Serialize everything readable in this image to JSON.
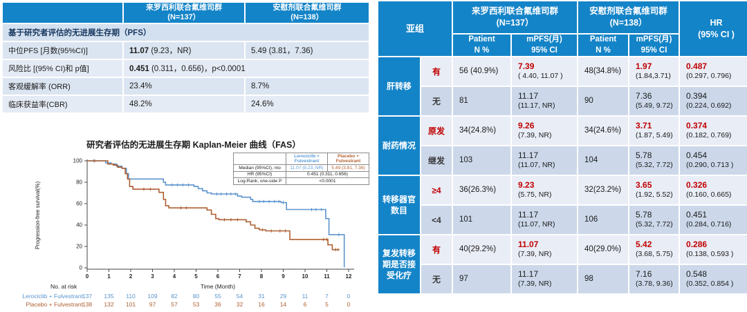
{
  "colors": {
    "header_blue": "#1484c8",
    "highlight_red": "#c00000",
    "navy": "#17375e",
    "row_light": "#e9edf6",
    "row_dark": "#ccd8ea",
    "row_left_a": "#dbe5f1",
    "row_left_b": "#e5ebf5",
    "lerociclib_blue": "#5b93cd",
    "placebo_brown": "#ad5f32"
  },
  "summary": {
    "arm1": {
      "name": "来罗西利联合氟维司群",
      "n": "(N=137）"
    },
    "arm2": {
      "name": "安慰剂联合氟维司群",
      "n": "(N=138）"
    },
    "section": "基于研究者评估的无进展生存期（PFS）",
    "rows": {
      "median": {
        "label": "中位PFS [月数(95%CI)]",
        "v1_bold": "11.07",
        "v1_rest": " (9.23，NR)",
        "v2": "5.49 (3.81，7.36)"
      },
      "hr": {
        "label": "风险比 [(95% CI)和 p值]",
        "v_bold": "0.451",
        "v_rest": " (0.311，0.656)，p<0.0001"
      },
      "orr": {
        "label": "客观缓解率 (ORR)",
        "v1": "23.4%",
        "v2": "8.7%"
      },
      "cbr": {
        "label": "临床获益率(CBR)",
        "v1": "48.2%",
        "v2": "24.6%"
      }
    }
  },
  "chart_data": {
    "type": "line",
    "subtype": "kaplan-meier-step",
    "title": "研究者评估的无进展生存期 Kaplan-Meier 曲线（FAS）",
    "xlabel": "Time (Month)",
    "ylabel": "Progression-free survival(%)",
    "xlim": [
      0,
      12.4
    ],
    "ylim": [
      0,
      100
    ],
    "xticks": [
      0,
      1,
      2,
      3,
      4,
      5,
      6,
      7,
      8,
      9,
      10,
      11,
      12
    ],
    "yticks": [
      0,
      20,
      40,
      60,
      80,
      100
    ],
    "grid": false,
    "series": [
      {
        "name": "Lerociclib + Fulvestrant",
        "color": "#5b93cd",
        "steps": [
          [
            0,
            100
          ],
          [
            0.85,
            100
          ],
          [
            0.85,
            98
          ],
          [
            1.1,
            98
          ],
          [
            1.1,
            97
          ],
          [
            1.35,
            97
          ],
          [
            1.35,
            95
          ],
          [
            1.6,
            95
          ],
          [
            1.6,
            93
          ],
          [
            1.8,
            93
          ],
          [
            1.8,
            88
          ],
          [
            1.9,
            88
          ],
          [
            1.9,
            83
          ],
          [
            3.5,
            83
          ],
          [
            3.5,
            80
          ],
          [
            3.6,
            80
          ],
          [
            3.6,
            77.5
          ],
          [
            4.9,
            77.5
          ],
          [
            4.9,
            76
          ],
          [
            5.1,
            76
          ],
          [
            5.1,
            74
          ],
          [
            5.3,
            74
          ],
          [
            5.3,
            72
          ],
          [
            5.5,
            72
          ],
          [
            5.5,
            70
          ],
          [
            5.7,
            70
          ],
          [
            5.7,
            69
          ],
          [
            6.9,
            69
          ],
          [
            6.9,
            67
          ],
          [
            7.1,
            67
          ],
          [
            7.1,
            66
          ],
          [
            7.5,
            66
          ],
          [
            7.5,
            64
          ],
          [
            7.6,
            64
          ],
          [
            7.6,
            62
          ],
          [
            8.9,
            62
          ],
          [
            8.9,
            61
          ],
          [
            9.15,
            61
          ],
          [
            9.15,
            54.5
          ],
          [
            10.95,
            54.5
          ],
          [
            10.95,
            46
          ],
          [
            11.1,
            46
          ],
          [
            11.1,
            31
          ],
          [
            11.8,
            31
          ],
          [
            11.8,
            0.5
          ]
        ],
        "censors": [
          [
            0.3,
            100
          ],
          [
            3.9,
            77.5
          ],
          [
            4.15,
            77.5
          ],
          [
            4.4,
            77.5
          ],
          [
            4.65,
            77.5
          ],
          [
            5.95,
            69
          ],
          [
            6.15,
            69
          ],
          [
            6.4,
            69
          ],
          [
            6.6,
            69
          ],
          [
            6.8,
            69
          ],
          [
            7.9,
            62
          ],
          [
            8.1,
            62
          ],
          [
            8.35,
            62
          ],
          [
            8.6,
            62
          ],
          [
            8.8,
            62
          ],
          [
            9.0,
            61
          ],
          [
            10.3,
            54.5
          ],
          [
            10.5,
            54.5
          ],
          [
            10.75,
            54.5
          ],
          [
            11.55,
            31
          ]
        ]
      },
      {
        "name": "Placebo + Fulvestrant",
        "color": "#ad5f32",
        "steps": [
          [
            0,
            100
          ],
          [
            0.95,
            100
          ],
          [
            0.95,
            97
          ],
          [
            1.2,
            97
          ],
          [
            1.2,
            96
          ],
          [
            1.4,
            96
          ],
          [
            1.4,
            94
          ],
          [
            1.6,
            94
          ],
          [
            1.6,
            93
          ],
          [
            1.75,
            93
          ],
          [
            1.75,
            88
          ],
          [
            1.85,
            88
          ],
          [
            1.85,
            83
          ],
          [
            1.95,
            83
          ],
          [
            1.95,
            76
          ],
          [
            2.1,
            76
          ],
          [
            2.1,
            73.5
          ],
          [
            3.3,
            73.5
          ],
          [
            3.3,
            70.5
          ],
          [
            3.5,
            70.5
          ],
          [
            3.5,
            64
          ],
          [
            3.6,
            64
          ],
          [
            3.6,
            58
          ],
          [
            3.75,
            58
          ],
          [
            3.75,
            56
          ],
          [
            5.5,
            56
          ],
          [
            5.5,
            54
          ],
          [
            5.7,
            54
          ],
          [
            5.7,
            50
          ],
          [
            5.9,
            50
          ],
          [
            5.9,
            46
          ],
          [
            6.05,
            46
          ],
          [
            6.05,
            45
          ],
          [
            7.3,
            45
          ],
          [
            7.3,
            43
          ],
          [
            7.5,
            43
          ],
          [
            7.5,
            40
          ],
          [
            7.7,
            40
          ],
          [
            7.7,
            37
          ],
          [
            7.9,
            37
          ],
          [
            7.9,
            35.5
          ],
          [
            8.2,
            35.5
          ],
          [
            8.2,
            34.5
          ],
          [
            9.3,
            34.5
          ],
          [
            9.3,
            26.5
          ],
          [
            11.05,
            26.5
          ],
          [
            11.05,
            21.5
          ],
          [
            11.25,
            21.5
          ],
          [
            11.25,
            17
          ],
          [
            11.55,
            17
          ]
        ],
        "censors": [
          [
            0.35,
            100
          ],
          [
            2.6,
            73.5
          ],
          [
            2.9,
            73.5
          ],
          [
            4.3,
            56
          ],
          [
            4.55,
            56
          ],
          [
            6.3,
            45
          ],
          [
            6.6,
            45
          ],
          [
            6.9,
            45
          ],
          [
            8.05,
            35.5
          ],
          [
            8.45,
            34.5
          ],
          [
            8.85,
            34.5
          ],
          [
            9.1,
            34.5
          ],
          [
            10.85,
            26.5
          ],
          [
            11.0,
            26.5
          ],
          [
            11.4,
            17
          ],
          [
            11.52,
            17
          ]
        ]
      }
    ],
    "at_risk": {
      "label": "No. at risk",
      "rows": [
        {
          "name": "Lerociclib + Fulvestrant",
          "color": "#5b93cd",
          "values": [
            137,
            135,
            110,
            109,
            82,
            80,
            55,
            54,
            31,
            29,
            11,
            7,
            0
          ]
        },
        {
          "name": "Placebo + Fulvestrant",
          "color": "#ad5f32",
          "values": [
            138,
            132,
            101,
            97,
            57,
            53,
            36,
            32,
            16,
            14,
            6,
            5,
            0
          ]
        }
      ]
    },
    "inset": {
      "col1": "Lerociclib +\nFulvestrant",
      "col2": "Placebo +\nFulvestrant",
      "median_label": "Median (95%CI), mo",
      "median_v1": "11.07 (9.23, NR)",
      "median_v2": "5.49 (3.81, 7.36)",
      "hr_label": "HR (95%CI)",
      "hr_value": "0.451  (0.311, 0.656)",
      "logrank_label": "Log-Rank, one-side P",
      "logrank_value": "<0.0001"
    }
  },
  "subgroup_table": {
    "header": {
      "subgroup": "亚组",
      "arm1": "来罗西利联合氟维司群",
      "arm1_n": "(N=137）",
      "arm2": "安慰剂联合氟维司群",
      "arm2_n": "(N=138）",
      "patient": "Patient\nN %",
      "mpfs": "mPFS(月)\n95% CI",
      "hr": "HR\n(95% CI )"
    },
    "groups": [
      {
        "label": "肝转移",
        "rows": [
          {
            "sub": "有",
            "highlight": true,
            "p1": "56 (40.9%)",
            "m1": "7.39",
            "m1ci": "( 4.40, 11.07 )",
            "p2": "48(34.8%)",
            "m2": "1.97",
            "m2ci": "(1.84,3.71)",
            "hr": "0.487",
            "hrci": "(0.297, 0.796)"
          },
          {
            "sub": "无",
            "highlight": false,
            "p1": "81",
            "m1": "11.17",
            "m1ci": "(11.17, NR)",
            "p2": "90",
            "m2": "7.36",
            "m2ci": "(5.49, 9.72)",
            "hr": "0.394",
            "hrci": "(0.224, 0.692)"
          }
        ]
      },
      {
        "label": "耐药情况",
        "rows": [
          {
            "sub": "原发",
            "highlight": true,
            "p1": "34(24.8%)",
            "m1": "9.26",
            "m1ci": "(7.39, NR)",
            "p2": "34(24.6%)",
            "m2": "3.71",
            "m2ci": "(1.87, 5.49)",
            "hr": "0.374",
            "hrci": "(0.182, 0.769)"
          },
          {
            "sub": "继发",
            "highlight": false,
            "p1": "103",
            "m1": "11.17",
            "m1ci": "(11.07, NR)",
            "p2": "104",
            "m2": "5.78",
            "m2ci": "(5.32, 7.72)",
            "hr": "0.454",
            "hrci": "(0.290, 0.713 )"
          }
        ]
      },
      {
        "label": "转移器官\n数目",
        "rows": [
          {
            "sub": "≥4",
            "highlight": true,
            "p1": "36(26.3%)",
            "m1": "9.23",
            "m1ci": "(5.75, NR)",
            "p2": "32(23.2%)",
            "m2": "3.65",
            "m2ci": "(1.92, 5.52)",
            "hr": "0.326",
            "hrci": "(0.160, 0.665)"
          },
          {
            "sub": "<4",
            "highlight": false,
            "p1": "101",
            "m1": "11.17",
            "m1ci": "(11.07, NR)",
            "p2": "106",
            "m2": "5.78",
            "m2ci": "(5.32, 7.72)",
            "hr": "0.451",
            "hrci": "(0.284, 0.716)"
          }
        ]
      },
      {
        "label": "复发转移\n期是否接\n受化疗",
        "rows": [
          {
            "sub": "有",
            "highlight": true,
            "p1": "40(29.2%)",
            "m1": "11.07",
            "m1ci": "(7.39, NR)",
            "p2": "40(29.0%)",
            "m2": "5.42",
            "m2ci": "(3.68, 5.75)",
            "hr": "0.286",
            "hrci": "(0.138, 0.593 )"
          },
          {
            "sub": "无",
            "highlight": false,
            "p1": "97",
            "m1": "11.17",
            "m1ci": "(7.39, NR)",
            "p2": "98",
            "m2": "7.16",
            "m2ci": "(3.78, 9.36)",
            "hr": "0.548",
            "hrci": "(0.352, 0.854 )"
          }
        ]
      }
    ]
  }
}
